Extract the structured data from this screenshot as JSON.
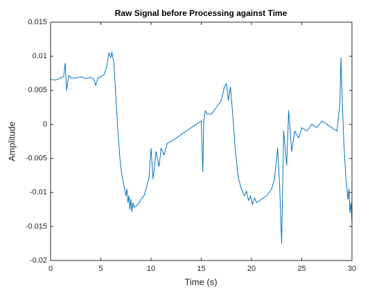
{
  "chart_data": {
    "type": "line",
    "title": "Raw Signal before Processing against Time",
    "x_label": "Time (s)",
    "y_label": "Amplitude",
    "xlim": [
      0,
      30
    ],
    "ylim": [
      -0.02,
      0.015
    ],
    "xticks": [
      0,
      5,
      10,
      15,
      20,
      25,
      30
    ],
    "yticks": [
      -0.02,
      -0.015,
      -0.01,
      -0.005,
      0,
      0.005,
      0.01,
      0.015
    ],
    "grid": false,
    "series": [
      {
        "name": "Raw Signal",
        "color": "#0072bd",
        "x": [
          0,
          0.5,
          1.0,
          1.3,
          1.45,
          1.6,
          1.8,
          2.0,
          2.5,
          3.0,
          3.5,
          4.0,
          4.3,
          4.5,
          4.7,
          5.0,
          5.3,
          5.6,
          5.8,
          6.0,
          6.1,
          6.3,
          6.5,
          6.7,
          6.9,
          7.1,
          7.3,
          7.5,
          7.6,
          7.7,
          7.8,
          7.9,
          8.0,
          8.1,
          8.2,
          8.3,
          8.5,
          8.7,
          9.0,
          9.3,
          9.5,
          9.8,
          10.0,
          10.2,
          10.5,
          10.8,
          11.0,
          11.3,
          11.6,
          12.0,
          12.5,
          13.0,
          13.5,
          14.0,
          14.5,
          15.0,
          15.15,
          15.25,
          15.4,
          15.6,
          16.0,
          16.5,
          17.0,
          17.3,
          17.5,
          17.7,
          17.9,
          18.1,
          18.4,
          18.7,
          19.0,
          19.3,
          19.5,
          19.7,
          19.9,
          20.1,
          20.3,
          20.5,
          21.0,
          21.5,
          22.0,
          22.3,
          22.6,
          22.8,
          23.0,
          23.2,
          23.5,
          23.7,
          24.0,
          24.3,
          24.7,
          25.0,
          25.5,
          26.0,
          26.5,
          27.0,
          27.5,
          28.0,
          28.5,
          28.8,
          28.9,
          29.05,
          29.2,
          29.4,
          29.6,
          29.7,
          29.8,
          29.9,
          30.0
        ],
        "values": [
          0.0066,
          0.0065,
          0.0068,
          0.007,
          0.009,
          0.005,
          0.0072,
          0.0068,
          0.0068,
          0.007,
          0.0067,
          0.0069,
          0.0066,
          0.0057,
          0.0068,
          0.007,
          0.0072,
          0.0085,
          0.0105,
          0.0098,
          0.0106,
          0.009,
          0.004,
          -0.001,
          -0.005,
          -0.0075,
          -0.009,
          -0.0105,
          -0.0095,
          -0.0115,
          -0.0105,
          -0.0125,
          -0.011,
          -0.0128,
          -0.0115,
          -0.0122,
          -0.012,
          -0.0118,
          -0.011,
          -0.0105,
          -0.0095,
          -0.0078,
          -0.0035,
          -0.008,
          -0.004,
          -0.0062,
          -0.0035,
          -0.0045,
          -0.0028,
          -0.0025,
          -0.002,
          -0.0015,
          -0.001,
          -0.0005,
          0.0,
          0.0005,
          -0.007,
          0.0005,
          0.002,
          0.0015,
          0.0015,
          0.0025,
          0.0035,
          0.0055,
          0.006,
          0.0035,
          0.0055,
          0.002,
          -0.004,
          -0.008,
          -0.0095,
          -0.0105,
          -0.0098,
          -0.0112,
          -0.0105,
          -0.0118,
          -0.0108,
          -0.0115,
          -0.011,
          -0.0105,
          -0.0095,
          -0.008,
          -0.0035,
          -0.009,
          -0.0175,
          -0.001,
          -0.006,
          0.002,
          -0.004,
          -0.001,
          -0.002,
          -0.0005,
          -0.001,
          0.0,
          -0.0005,
          0.0005,
          0.0,
          -0.0005,
          -0.001,
          0.003,
          0.0098,
          0.003,
          -0.003,
          -0.008,
          -0.011,
          -0.0095,
          -0.013,
          -0.0115,
          -0.0145
        ]
      }
    ]
  }
}
